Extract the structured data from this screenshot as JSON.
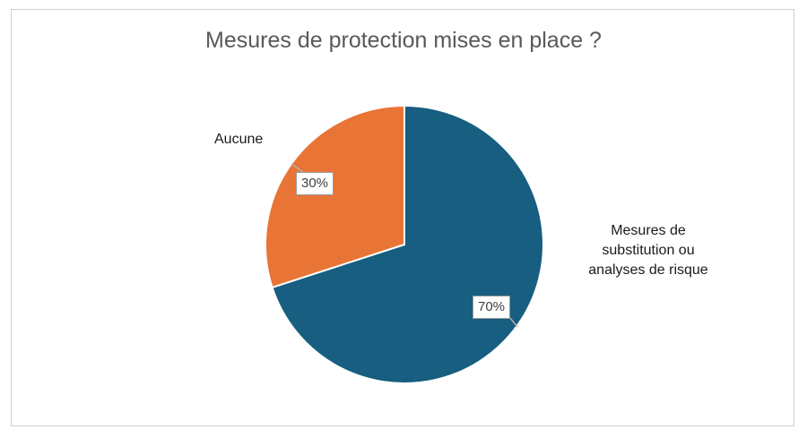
{
  "chart_data": {
    "type": "pie",
    "title": "Mesures de protection mises en place ?",
    "slices": [
      {
        "label": "Mesures de substitution ou analyses de risque",
        "label_lines": [
          "Mesures de",
          "substitution ou",
          "analyses de risque"
        ],
        "value": 70,
        "value_label": "70%",
        "color": "#175e80"
      },
      {
        "label": "Aucune",
        "value": 30,
        "value_label": "30%",
        "color": "#e87435"
      }
    ]
  }
}
